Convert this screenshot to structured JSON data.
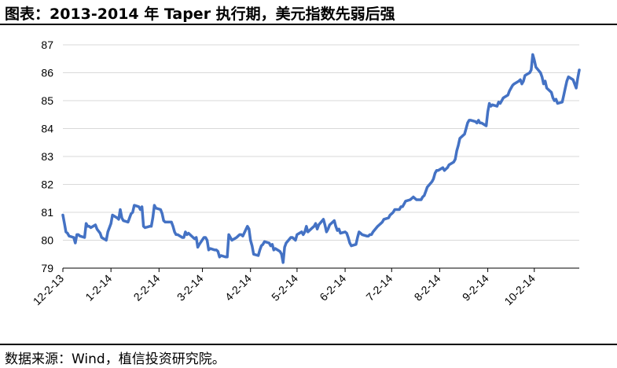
{
  "header": {
    "title": "图表：2013-2014 年 Taper 执行期，美元指数先弱后强"
  },
  "footer": {
    "source": "数据来源：Wind，植信投资研究院。"
  },
  "chart_data": {
    "type": "line",
    "title": "图表：2013-2014 年 Taper 执行期，美元指数先弱后强",
    "xlabel": "",
    "ylabel": "",
    "ylim": [
      79,
      87
    ],
    "yticks": [
      79,
      80,
      81,
      82,
      83,
      84,
      85,
      86,
      87
    ],
    "grid": "horizontal",
    "legend": "none",
    "colors": {
      "line": "#4472c4",
      "grid": "#d9d9d9",
      "axis": "#000000"
    },
    "xticks": [
      "12-2-13",
      "1-2-14",
      "2-2-14",
      "3-2-14",
      "4-2-14",
      "5-2-14",
      "6-2-14",
      "7-2-14",
      "8-2-14",
      "9-2-14",
      "10-2-14"
    ],
    "series": [
      {
        "x": [
          "2013-12-02",
          "2013-12-03",
          "2013-12-04",
          "2013-12-05",
          "2013-12-06",
          "2013-12-09",
          "2013-12-10",
          "2013-12-11",
          "2013-12-12",
          "2013-12-13",
          "2013-12-16",
          "2013-12-17",
          "2013-12-18",
          "2013-12-19",
          "2013-12-20",
          "2013-12-23",
          "2013-12-24",
          "2013-12-26",
          "2013-12-27",
          "2013-12-30",
          "2013-12-31",
          "2014-01-02",
          "2014-01-03",
          "2014-01-06",
          "2014-01-07",
          "2014-01-08",
          "2014-01-09",
          "2014-01-10",
          "2014-01-13",
          "2014-01-14",
          "2014-01-15",
          "2014-01-16",
          "2014-01-17",
          "2014-01-20",
          "2014-01-21",
          "2014-01-22",
          "2014-01-23",
          "2014-01-24",
          "2014-01-27",
          "2014-01-28",
          "2014-01-29",
          "2014-01-30",
          "2014-01-31",
          "2014-02-03",
          "2014-02-04",
          "2014-02-05",
          "2014-02-06",
          "2014-02-07",
          "2014-02-10",
          "2014-02-11",
          "2014-02-12",
          "2014-02-13",
          "2014-02-14",
          "2014-02-17",
          "2014-02-18",
          "2014-02-19",
          "2014-02-20",
          "2014-02-21",
          "2014-02-24",
          "2014-02-25",
          "2014-02-26",
          "2014-02-27",
          "2014-02-28",
          "2014-03-03",
          "2014-03-04",
          "2014-03-05",
          "2014-03-06",
          "2014-03-07",
          "2014-03-10",
          "2014-03-11",
          "2014-03-12",
          "2014-03-13",
          "2014-03-14",
          "2014-03-17",
          "2014-03-18",
          "2014-03-19",
          "2014-03-20",
          "2014-03-21",
          "2014-03-24",
          "2014-03-25",
          "2014-03-26",
          "2014-03-27",
          "2014-03-28",
          "2014-03-31",
          "2014-04-01",
          "2014-04-02",
          "2014-04-03",
          "2014-04-04",
          "2014-04-07",
          "2014-04-08",
          "2014-04-09",
          "2014-04-10",
          "2014-04-11",
          "2014-04-14",
          "2014-04-15",
          "2014-04-16",
          "2014-04-17",
          "2014-04-18",
          "2014-04-21",
          "2014-04-22",
          "2014-04-23",
          "2014-04-24",
          "2014-04-25",
          "2014-04-28",
          "2014-04-29",
          "2014-04-30",
          "2014-05-01",
          "2014-05-02",
          "2014-05-05",
          "2014-05-06",
          "2014-05-07",
          "2014-05-08",
          "2014-05-09",
          "2014-05-12",
          "2014-05-13",
          "2014-05-14",
          "2014-05-15",
          "2014-05-16",
          "2014-05-19",
          "2014-05-20",
          "2014-05-21",
          "2014-05-22",
          "2014-05-23",
          "2014-05-26",
          "2014-05-27",
          "2014-05-28",
          "2014-05-29",
          "2014-05-30",
          "2014-06-02",
          "2014-06-03",
          "2014-06-04",
          "2014-06-05",
          "2014-06-06",
          "2014-06-09",
          "2014-06-10",
          "2014-06-11",
          "2014-06-12",
          "2014-06-13",
          "2014-06-16",
          "2014-06-17",
          "2014-06-18",
          "2014-06-19",
          "2014-06-20",
          "2014-06-23",
          "2014-06-24",
          "2014-06-25",
          "2014-06-26",
          "2014-06-27",
          "2014-06-30",
          "2014-07-01",
          "2014-07-02",
          "2014-07-03",
          "2014-07-04",
          "2014-07-07",
          "2014-07-08",
          "2014-07-09",
          "2014-07-10",
          "2014-07-11",
          "2014-07-14",
          "2014-07-15",
          "2014-07-16",
          "2014-07-17",
          "2014-07-18",
          "2014-07-21",
          "2014-07-22",
          "2014-07-23",
          "2014-07-24",
          "2014-07-25",
          "2014-07-28",
          "2014-07-29",
          "2014-07-30",
          "2014-07-31",
          "2014-08-01",
          "2014-08-04",
          "2014-08-05",
          "2014-08-06",
          "2014-08-07",
          "2014-08-08",
          "2014-08-11",
          "2014-08-12",
          "2014-08-13",
          "2014-08-14",
          "2014-08-15",
          "2014-08-18",
          "2014-08-19",
          "2014-08-20",
          "2014-08-21",
          "2014-08-22",
          "2014-08-25",
          "2014-08-26",
          "2014-08-27",
          "2014-08-28",
          "2014-08-29",
          "2014-09-01",
          "2014-09-02",
          "2014-09-03",
          "2014-09-04",
          "2014-09-05",
          "2014-09-08",
          "2014-09-09",
          "2014-09-10",
          "2014-09-11",
          "2014-09-12",
          "2014-09-15",
          "2014-09-16",
          "2014-09-17",
          "2014-09-18",
          "2014-09-19",
          "2014-09-22",
          "2014-09-23",
          "2014-09-24",
          "2014-09-25",
          "2014-09-26",
          "2014-09-29",
          "2014-09-30",
          "2014-10-01",
          "2014-10-02",
          "2014-10-03",
          "2014-10-06",
          "2014-10-07",
          "2014-10-08",
          "2014-10-09",
          "2014-10-10",
          "2014-10-13",
          "2014-10-14",
          "2014-10-15",
          "2014-10-16",
          "2014-10-17",
          "2014-10-20",
          "2014-10-21",
          "2014-10-22",
          "2014-10-23",
          "2014-10-24",
          "2014-10-27",
          "2014-10-28",
          "2014-10-29",
          "2014-10-30",
          "2014-10-31"
        ],
        "y": [
          80.9,
          80.6,
          80.3,
          80.25,
          80.15,
          80.1,
          79.9,
          80.2,
          80.2,
          80.15,
          80.1,
          80.6,
          80.5,
          80.5,
          80.45,
          80.55,
          80.4,
          80.25,
          80.1,
          80.0,
          80.3,
          80.6,
          80.9,
          80.8,
          80.75,
          81.1,
          80.8,
          80.7,
          80.65,
          80.8,
          80.95,
          81.0,
          81.25,
          81.2,
          81.1,
          81.2,
          80.5,
          80.45,
          80.5,
          80.5,
          80.8,
          81.25,
          81.15,
          81.1,
          80.95,
          80.7,
          80.65,
          80.65,
          80.65,
          80.5,
          80.3,
          80.2,
          80.2,
          80.1,
          80.1,
          80.3,
          80.2,
          80.25,
          80.1,
          80.05,
          80.1,
          79.75,
          79.85,
          80.1,
          80.1,
          80.0,
          79.65,
          79.7,
          79.65,
          79.65,
          79.6,
          79.4,
          79.45,
          79.4,
          79.4,
          80.2,
          80.1,
          80.0,
          80.1,
          80.15,
          80.2,
          80.2,
          80.15,
          80.5,
          80.4,
          80.0,
          79.8,
          79.5,
          79.45,
          79.65,
          79.8,
          79.85,
          79.95,
          79.9,
          79.8,
          79.85,
          79.65,
          79.7,
          79.6,
          79.5,
          79.2,
          79.75,
          79.9,
          80.1,
          80.1,
          80.05,
          80.0,
          80.2,
          80.3,
          80.2,
          80.3,
          80.5,
          80.3,
          80.45,
          80.5,
          80.6,
          80.4,
          80.55,
          80.75,
          80.55,
          80.3,
          80.4,
          80.55,
          80.7,
          80.5,
          80.35,
          80.4,
          80.25,
          80.3,
          80.25,
          80.1,
          79.9,
          79.8,
          79.85,
          80.1,
          80.3,
          80.25,
          80.2,
          80.15,
          80.15,
          80.2,
          80.2,
          80.3,
          80.5,
          80.55,
          80.6,
          80.65,
          80.75,
          80.8,
          80.9,
          80.95,
          81.0,
          81.1,
          81.1,
          81.2,
          81.2,
          81.3,
          81.4,
          81.45,
          81.5,
          81.55,
          81.5,
          81.45,
          81.45,
          81.55,
          81.6,
          81.75,
          81.9,
          82.1,
          82.2,
          82.4,
          82.5,
          82.5,
          82.6,
          82.5,
          82.55,
          82.6,
          82.7,
          82.8,
          82.9,
          83.2,
          83.4,
          83.65,
          83.8,
          84.0,
          84.2,
          84.3,
          84.3,
          84.25,
          84.2,
          84.3,
          84.2,
          84.2,
          84.1,
          84.6,
          84.9,
          84.8,
          84.85,
          84.8,
          84.95,
          84.9,
          85.0,
          85.1,
          85.2,
          85.35,
          85.45,
          85.55,
          85.6,
          85.7,
          85.75,
          85.6,
          85.7,
          85.9,
          86.0,
          86.1,
          86.65,
          86.45,
          86.2,
          86.0,
          85.85,
          85.6,
          85.7,
          85.45,
          85.3,
          85.1,
          85.0,
          85.05,
          84.9,
          84.95,
          85.2,
          85.45,
          85.7,
          85.85,
          85.75,
          85.6,
          85.45,
          85.8,
          86.1
        ]
      }
    ]
  }
}
